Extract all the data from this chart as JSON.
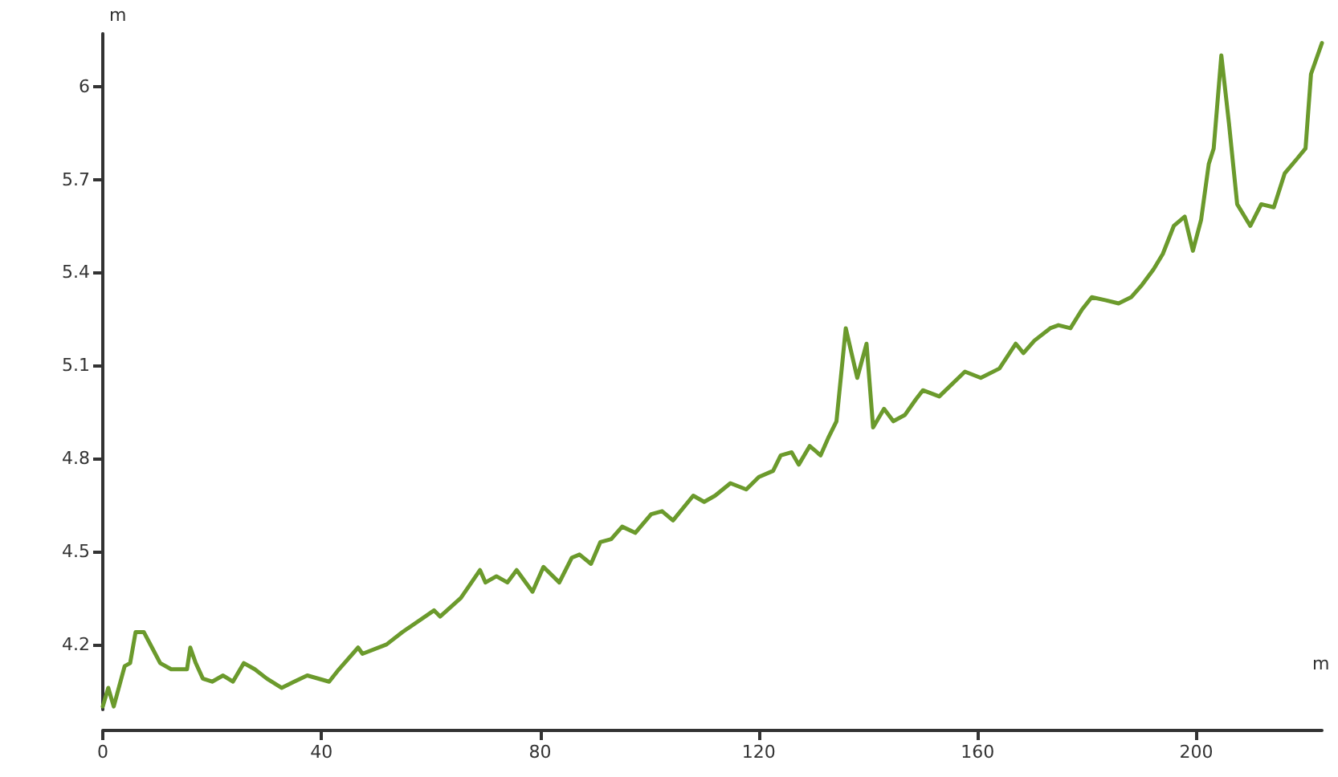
{
  "chart_data": {
    "type": "line",
    "xlabel": "m",
    "ylabel": "m",
    "color": "#6b9a2c",
    "marker": "none",
    "line_style": "solid",
    "xlim": [
      0,
      223
    ],
    "xticks": [
      0,
      40,
      80,
      120,
      160,
      200
    ],
    "ylim": [
      3.99,
      6.17
    ],
    "yticks": [
      4.2,
      4.5,
      4.8,
      5.1,
      5.4,
      5.7,
      6
    ],
    "x": [
      0,
      1,
      2,
      4,
      5,
      6,
      7.5,
      9,
      10.5,
      12.5,
      14,
      15.4,
      16,
      17,
      18.3,
      20,
      22,
      23.8,
      25.8,
      27.8,
      30,
      32.7,
      35,
      37.4,
      41.4,
      43.2,
      46.7,
      47.5,
      51.9,
      54.8,
      60.6,
      61.7,
      65.5,
      69,
      70,
      72,
      74,
      75.7,
      78.6,
      80.6,
      83.5,
      85.8,
      87.2,
      89.3,
      91,
      93,
      95,
      97.4,
      100.3,
      102.3,
      104.3,
      108,
      110,
      112,
      114.8,
      117.7,
      120,
      122.6,
      124,
      126,
      127.3,
      129.3,
      131.3,
      132.8,
      134.2,
      135.9,
      138,
      139.7,
      140.9,
      142.9,
      144.6,
      146.7,
      148.7,
      150,
      153,
      157.7,
      160.6,
      164,
      167,
      168.4,
      170.4,
      173.3,
      174.8,
      177,
      179.1,
      180.9,
      183.5,
      185.8,
      188.1,
      190.1,
      192.2,
      193.9,
      195.9,
      197.9,
      199.4,
      200.9,
      202.3,
      203.2,
      204.6,
      206,
      207.5,
      209.9,
      211.9,
      214.2,
      216.2,
      218.6,
      220,
      221,
      223
    ],
    "values": [
      4.0,
      4.06,
      4.0,
      4.13,
      4.14,
      4.24,
      4.24,
      4.19,
      4.14,
      4.12,
      4.12,
      4.12,
      4.19,
      4.14,
      4.09,
      4.08,
      4.1,
      4.08,
      4.14,
      4.12,
      4.09,
      4.06,
      4.08,
      4.1,
      4.08,
      4.12,
      4.19,
      4.17,
      4.2,
      4.24,
      4.31,
      4.29,
      4.35,
      4.44,
      4.4,
      4.42,
      4.4,
      4.44,
      4.37,
      4.45,
      4.4,
      4.48,
      4.49,
      4.46,
      4.53,
      4.54,
      4.58,
      4.56,
      4.62,
      4.63,
      4.6,
      4.68,
      4.66,
      4.68,
      4.72,
      4.7,
      4.74,
      4.76,
      4.81,
      4.82,
      4.78,
      4.84,
      4.81,
      4.87,
      4.92,
      5.22,
      5.06,
      5.17,
      4.9,
      4.96,
      4.92,
      4.94,
      4.99,
      5.02,
      5.0,
      5.08,
      5.06,
      5.09,
      5.17,
      5.14,
      5.18,
      5.22,
      5.23,
      5.22,
      5.28,
      5.32,
      5.31,
      5.3,
      5.32,
      5.36,
      5.41,
      5.46,
      5.55,
      5.58,
      5.47,
      5.57,
      5.75,
      5.8,
      6.1,
      5.88,
      5.62,
      5.55,
      5.62,
      5.61,
      5.72,
      5.77,
      5.8,
      6.04,
      6.14
    ]
  }
}
